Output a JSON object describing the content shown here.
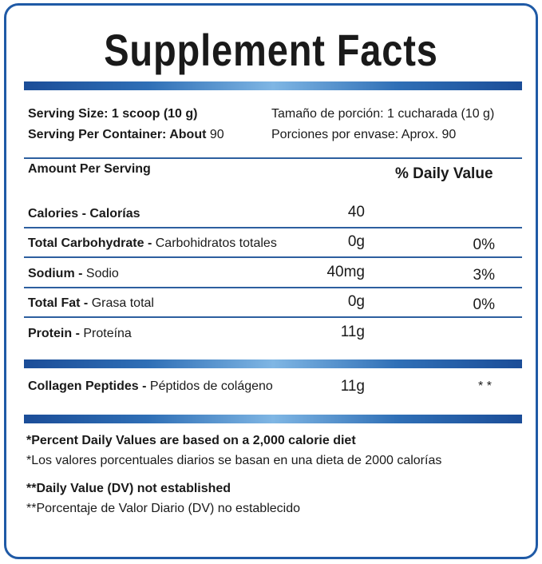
{
  "header": {
    "title": "Supplement Facts"
  },
  "serving": {
    "size": "Serving Size: 1 scoop (10 g)",
    "size_es": "Tamaño de porción: 1 cucharada (10 g)",
    "per_container_label": "Serving Per Container: About",
    "per_container_value": "90",
    "per_container_es": "Porciones por envase: Aprox. 90"
  },
  "columns": {
    "amount": "Amount Per Serving",
    "dv": "% Daily Value"
  },
  "rows": [
    {
      "name": "Calories - Calorías",
      "amount": "40"
    },
    {
      "name": "Total Carbohydrate -",
      "name_es": "Carbohidratos totales",
      "amount": "0g",
      "dv": "0%"
    },
    {
      "name": "Sodium -",
      "name_es": "Sodio",
      "amount": "40mg",
      "dv": "3%"
    },
    {
      "name": "Total Fat -",
      "name_es": "Grasa total",
      "amount": "0g",
      "dv": "0%"
    },
    {
      "name": "Protein -",
      "name_es": "Proteína",
      "amount": "11g"
    }
  ],
  "other": {
    "name": "Collagen Peptides -",
    "name_es": "Péptidos de colágeno",
    "amount": "11g",
    "dv": "* *"
  },
  "footnotes": [
    "*Percent Daily Values are based on a 2,000 calorie diet",
    "*Los valores porcentuales diarios se basan en una dieta de 2000 calorías",
    "**Daily Value (DV) not established",
    "**Porcentaje de Valor Diario (DV) no establecido"
  ]
}
